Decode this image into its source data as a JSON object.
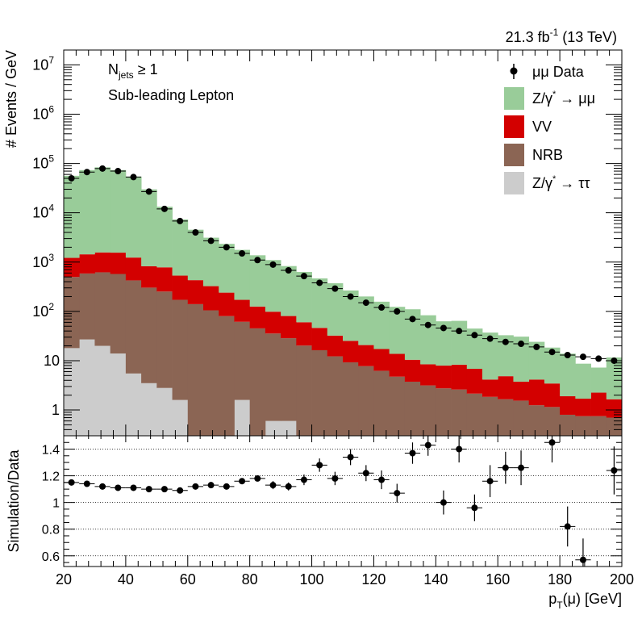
{
  "lumi": {
    "main": "21.3 fb",
    "sup": "-1",
    "tail": " (13 TeV)"
  },
  "annotations": {
    "njets_n": "N",
    "njets_sub": "jets",
    "njets_rest": " ≥ 1",
    "lepton": "Sub-leading Lepton"
  },
  "legend": [
    {
      "key": "data",
      "label": "μμ Data",
      "color": "#000000"
    },
    {
      "key": "zmm",
      "label_main": "Z/γ",
      "label_sup": "*",
      "label_rest": " → μμ",
      "color": "#99cc99"
    },
    {
      "key": "vv",
      "label": "VV",
      "color": "#d30000"
    },
    {
      "key": "nrb",
      "label": "NRB",
      "color": "#8b6554"
    },
    {
      "key": "ztt",
      "label_main": "Z/γ",
      "label_sup": "*",
      "label_rest": " → ττ",
      "color": "#cccccc"
    }
  ],
  "chart_data": [
    {
      "type": "area",
      "stacked": true,
      "log_y": true,
      "ylabel": "# Events / GeV",
      "xlim": [
        20,
        200
      ],
      "ylim": [
        0.3,
        20000000
      ],
      "yticks": [
        {
          "v": 1,
          "t": "1"
        },
        {
          "v": 10,
          "t": "10"
        },
        {
          "v": 100,
          "b": "10",
          "e": "2"
        },
        {
          "v": 1000,
          "b": "10",
          "e": "3"
        },
        {
          "v": 10000,
          "b": "10",
          "e": "4"
        },
        {
          "v": 100000,
          "b": "10",
          "e": "5"
        },
        {
          "v": 1000000,
          "b": "10",
          "e": "6"
        },
        {
          "v": 10000000,
          "b": "10",
          "e": "7"
        }
      ],
      "bin_edges": [
        20,
        25,
        30,
        35,
        40,
        45,
        50,
        55,
        60,
        65,
        70,
        75,
        80,
        85,
        90,
        95,
        100,
        105,
        110,
        115,
        120,
        125,
        130,
        135,
        140,
        145,
        150,
        155,
        160,
        165,
        170,
        175,
        180,
        185,
        190,
        195,
        200
      ],
      "series": [
        {
          "name": "Z/γ* → ττ",
          "values": [
            18,
            27,
            20,
            14,
            5.5,
            3.5,
            2.8,
            1.6,
            0.25,
            0.25,
            0.25,
            1.6,
            0.25,
            0.6,
            0.6,
            0.25,
            0.3,
            0.25,
            0.25,
            0.25,
            0.25,
            0.25,
            0.25,
            0.25,
            0.25,
            0.3,
            0.25,
            0.25,
            0.25,
            0.25,
            0.25,
            0.25,
            0.3,
            0.25,
            0.25,
            0.25
          ]
        },
        {
          "name": "NRB",
          "values": [
            480,
            560,
            600,
            560,
            420,
            300,
            250,
            170,
            140,
            105,
            80,
            60,
            45,
            35,
            28,
            20,
            16,
            12,
            9,
            7.5,
            6,
            4.5,
            3.5,
            2.9,
            2.5,
            2.3,
            1.9,
            1.6,
            1.4,
            1.3,
            1.0,
            0.9,
            0.5,
            0.5,
            0.5,
            0.45
          ]
        },
        {
          "name": "VV",
          "values": [
            720,
            850,
            950,
            980,
            810,
            520,
            530,
            360,
            290,
            220,
            160,
            110,
            80,
            63,
            52,
            40,
            30,
            20,
            16,
            13,
            11,
            9,
            6.7,
            5.3,
            5.2,
            5.7,
            4.7,
            2.3,
            3.2,
            2.2,
            2.9,
            2.3,
            1.1,
            0.95,
            1.5,
            0.95
          ]
        },
        {
          "name": "Z/γ* → μμ",
          "values": [
            55000,
            72000,
            82000,
            72000,
            53000,
            29000,
            12500,
            6800,
            4100,
            2800,
            2100,
            1600,
            1250,
            1000,
            750,
            570,
            420,
            340,
            240,
            180,
            140,
            110,
            100,
            75,
            55,
            56,
            38,
            33,
            28,
            27,
            20,
            15,
            12,
            7,
            5,
            10
          ]
        }
      ],
      "data": {
        "name": "μμ Data",
        "x": [
          22.5,
          27.5,
          32.5,
          37.5,
          42.5,
          47.5,
          52.5,
          57.5,
          62.5,
          67.5,
          72.5,
          77.5,
          82.5,
          87.5,
          92.5,
          97.5,
          102.5,
          107.5,
          112.5,
          117.5,
          122.5,
          127.5,
          132.5,
          137.5,
          142.5,
          147.5,
          152.5,
          157.5,
          162.5,
          167.5,
          172.5,
          177.5,
          182.5,
          187.5,
          192.5,
          197.5
        ],
        "y": [
          50000,
          67000,
          79000,
          70000,
          53000,
          27000,
          12000,
          6800,
          4000,
          2700,
          2000,
          1500,
          1100,
          890,
          680,
          520,
          380,
          290,
          200,
          150,
          120,
          100,
          70,
          53,
          46,
          40,
          33,
          28,
          24,
          22,
          19,
          15,
          13,
          12,
          11,
          10
        ]
      }
    },
    {
      "type": "scatter",
      "ylabel": "Simulation/Data",
      "xlabel_main": "p",
      "xlabel_sub": "T",
      "xlabel_rest": "(μ) [GeV]",
      "xlim": [
        20,
        200
      ],
      "ylim": [
        0.52,
        1.5
      ],
      "xticks": [
        20,
        40,
        60,
        80,
        100,
        120,
        140,
        160,
        180,
        200
      ],
      "yticks": [
        {
          "v": 0.6,
          "t": "0.6"
        },
        {
          "v": 0.8,
          "t": "0.8"
        },
        {
          "v": 1.0,
          "t": "1"
        },
        {
          "v": 1.2,
          "t": "1.2"
        },
        {
          "v": 1.4,
          "t": "1.4"
        }
      ],
      "x": [
        22.5,
        27.5,
        32.5,
        37.5,
        42.5,
        47.5,
        52.5,
        57.5,
        62.5,
        67.5,
        72.5,
        77.5,
        82.5,
        87.5,
        92.5,
        97.5,
        102.5,
        107.5,
        112.5,
        117.5,
        122.5,
        127.5,
        132.5,
        137.5,
        142.5,
        147.5,
        152.5,
        157.5,
        162.5,
        167.5,
        172.5,
        177.5,
        182.5,
        187.5,
        192.5,
        197.5
      ],
      "y": [
        1.15,
        1.14,
        1.12,
        1.11,
        1.11,
        1.1,
        1.1,
        1.09,
        1.12,
        1.13,
        1.12,
        1.16,
        1.18,
        1.13,
        1.12,
        1.17,
        1.28,
        1.18,
        1.34,
        1.22,
        1.17,
        1.07,
        1.37,
        1.43,
        1.0,
        1.4,
        0.96,
        1.16,
        1.26,
        1.26,
        null,
        1.45,
        0.82,
        0.57,
        null,
        1.24
      ],
      "yerr": [
        0.01,
        0.01,
        0.01,
        0.01,
        0.01,
        0.01,
        0.01,
        0.01,
        0.01,
        0.02,
        0.02,
        0.02,
        0.02,
        0.03,
        0.03,
        0.04,
        0.05,
        0.05,
        0.06,
        0.06,
        0.07,
        0.07,
        0.08,
        0.08,
        0.09,
        0.1,
        0.1,
        0.12,
        0.12,
        0.13,
        0.14,
        0.15,
        0.15,
        0.16,
        0.18,
        0.18
      ]
    }
  ]
}
